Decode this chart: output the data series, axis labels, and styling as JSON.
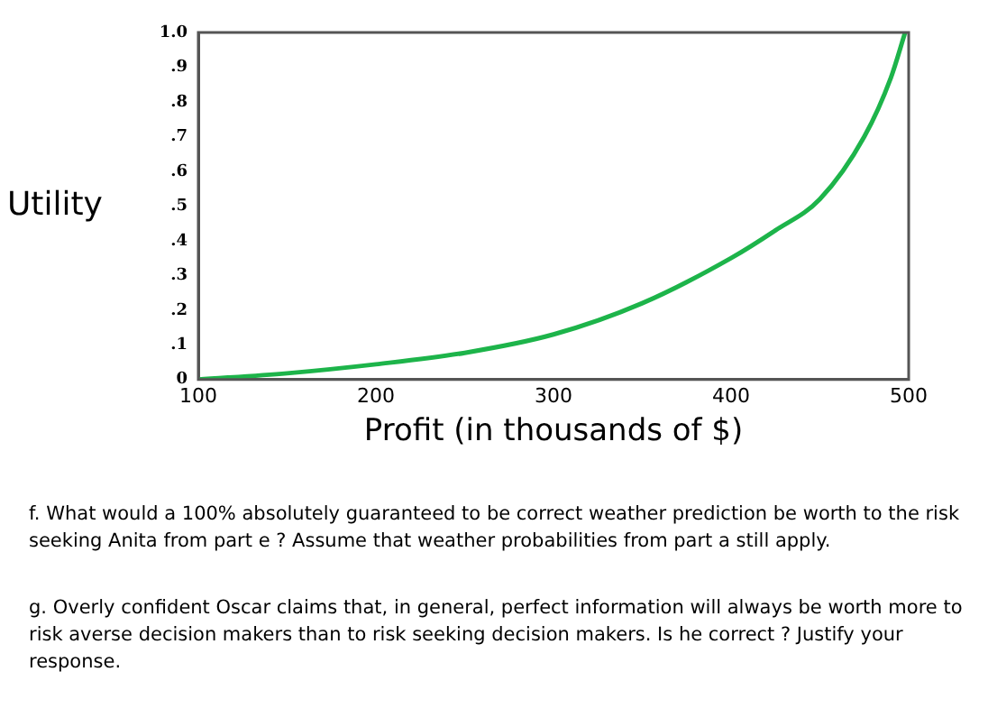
{
  "chart_data": {
    "type": "line",
    "xlabel": "Profit (in thousands of $)",
    "ylabel": "Utility",
    "series": [
      {
        "color": "#1db44a",
        "x": [
          100,
          150,
          200,
          250,
          300,
          350,
          400,
          425,
          450,
          475,
          490,
          498
        ],
        "values": [
          0,
          0.018,
          0.044,
          0.077,
          0.13,
          0.22,
          0.35,
          0.43,
          0.52,
          0.7,
          0.87,
          1.0
        ]
      }
    ],
    "xlim": [
      100,
      500
    ],
    "xticks": [
      100,
      200,
      300,
      400,
      500
    ],
    "ylim": [
      0,
      1
    ],
    "yticks": [
      0,
      {
        "value": 0.1,
        "label": ".1"
      },
      {
        "value": 0.2,
        "label": ".2"
      },
      {
        "value": 0.3,
        "label": ".3"
      },
      {
        "value": 0.4,
        "label": ".4"
      },
      {
        "value": 0.5,
        "label": ".5"
      },
      {
        "value": 0.6,
        "label": ".6"
      },
      {
        "value": 0.7,
        "label": ".7"
      },
      {
        "value": 0.8,
        "label": ".8"
      },
      {
        "value": 0.9,
        "label": ".9"
      },
      {
        "value": 1,
        "label": "1.0"
      }
    ],
    "grid": false,
    "legend": false,
    "marker": "none",
    "line_style": "solid",
    "annotations": [
      "f. What would a 100% absolutely guaranteed to be correct weather prediction be worth to the risk seeking Anita from part e ? Assume that weather probabilities from part a still apply.",
      "g. Overly confident Oscar claims that, in general, perfect information will always be worth more to risk averse decision makers than to risk seeking decision makers. Is he correct ? Justify your response."
    ]
  }
}
